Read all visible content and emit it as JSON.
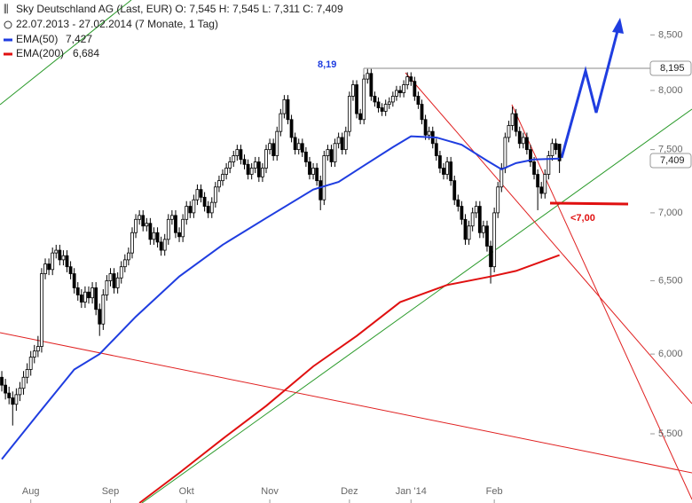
{
  "chart_data": {
    "type": "candlestick",
    "title": "Sky Deutschland AG (Last, EUR)  O: 7,545  H: 7,545  L: 7,311  C: 7,409",
    "subtitle": "22.07.2013 - 27.02.2014 (7 Monate, 1 Tag)",
    "log_scale": true,
    "ylim": [
      5.1,
      8.83
    ],
    "yticks": [
      {
        "value": 5.5,
        "label": "5,500"
      },
      {
        "value": 6,
        "label": "6,000"
      },
      {
        "value": 6.5,
        "label": "6,500"
      },
      {
        "value": 7,
        "label": "7,000"
      },
      {
        "value": 7.5,
        "label": "7,500"
      },
      {
        "value": 8,
        "label": "8,000"
      },
      {
        "value": 8.5,
        "label": "8,500"
      }
    ],
    "xlim": [
      -0.5,
      190.6
    ],
    "xticks": [
      {
        "value": 8,
        "label": "Aug"
      },
      {
        "value": 30,
        "label": "Sep"
      },
      {
        "value": 51,
        "label": "Okt"
      },
      {
        "value": 74,
        "label": "Nov"
      },
      {
        "value": 96,
        "label": "Dez"
      },
      {
        "value": 113,
        "label": "Jan '14"
      },
      {
        "value": 136,
        "label": "Feb"
      }
    ],
    "up_color": "#ffffff",
    "down_color": "#000000",
    "open": [
      5.85,
      5.8,
      5.75,
      5.72,
      5.68,
      5.74,
      5.78,
      5.85,
      5.9,
      5.98,
      6.02,
      6.05,
      6.55,
      6.62,
      6.58,
      6.7,
      6.72,
      6.65,
      6.68,
      6.6,
      6.55,
      6.45,
      6.4,
      6.35,
      6.42,
      6.38,
      6.45,
      6.3,
      6.2,
      6.4,
      6.5,
      6.55,
      6.45,
      6.52,
      6.6,
      6.65,
      6.7,
      6.85,
      6.95,
      6.98,
      6.9,
      6.92,
      6.8,
      6.85,
      6.78,
      6.72,
      6.8,
      6.95,
      6.98,
      6.85,
      6.82,
      6.95,
      7.05,
      7.0,
      7.1,
      7.18,
      7.12,
      7.05,
      7.0,
      7.08,
      7.2,
      7.25,
      7.3,
      7.35,
      7.4,
      7.45,
      7.5,
      7.42,
      7.38,
      7.3,
      7.35,
      7.4,
      7.28,
      7.35,
      7.5,
      7.55,
      7.45,
      7.65,
      7.8,
      7.92,
      7.75,
      7.6,
      7.5,
      7.55,
      7.48,
      7.4,
      7.3,
      7.35,
      7.25,
      7.1,
      7.45,
      7.5,
      7.4,
      7.55,
      7.6,
      7.5,
      7.65,
      7.95,
      8.05,
      7.8,
      7.75,
      8.1,
      8.15,
      7.95,
      7.9,
      7.85,
      7.82,
      7.88,
      7.9,
      7.95,
      8.0,
      7.98,
      8.05,
      8.12,
      8.08,
      7.95,
      7.88,
      7.75,
      7.62,
      7.65,
      7.55,
      7.45,
      7.35,
      7.3,
      7.4,
      7.25,
      7.1,
      7.05,
      6.95,
      6.8,
      6.9,
      7.0,
      7.05,
      6.85,
      6.9,
      6.75,
      6.6,
      7.0,
      7.2,
      7.35,
      7.6,
      7.7,
      7.8,
      7.65,
      7.55,
      7.6,
      7.5,
      7.4,
      7.3,
      7.2,
      7.15,
      7.3,
      7.45,
      7.55,
      7.545
    ],
    "high": [
      5.89,
      5.84,
      5.79,
      5.76,
      5.78,
      5.82,
      5.89,
      5.94,
      6.02,
      6.06,
      6.12,
      6.59,
      6.66,
      6.66,
      6.74,
      6.76,
      6.76,
      6.72,
      6.72,
      6.64,
      6.59,
      6.49,
      6.44,
      6.46,
      6.46,
      6.49,
      6.49,
      6.34,
      6.44,
      6.54,
      6.59,
      6.59,
      6.56,
      6.64,
      6.69,
      6.74,
      6.89,
      6.99,
      7.02,
      7.02,
      6.96,
      6.96,
      6.89,
      6.89,
      6.82,
      6.84,
      6.99,
      7.02,
      7.02,
      6.89,
      6.99,
      7.09,
      7.09,
      7.14,
      7.22,
      7.22,
      7.16,
      7.09,
      7.12,
      7.24,
      7.29,
      7.34,
      7.39,
      7.44,
      7.49,
      7.54,
      7.54,
      7.46,
      7.42,
      7.39,
      7.44,
      7.44,
      7.39,
      7.54,
      7.59,
      7.59,
      7.69,
      7.84,
      7.96,
      7.96,
      7.79,
      7.64,
      7.59,
      7.59,
      7.52,
      7.44,
      7.39,
      7.39,
      7.29,
      7.49,
      7.54,
      7.54,
      7.59,
      7.64,
      7.64,
      7.69,
      7.99,
      8.09,
      8.09,
      7.84,
      8.14,
      8.19,
      8.19,
      7.99,
      7.94,
      7.89,
      7.92,
      7.94,
      7.99,
      8.04,
      8.04,
      8.09,
      8.16,
      8.16,
      8.12,
      7.99,
      7.92,
      7.79,
      7.69,
      7.69,
      7.59,
      7.49,
      7.39,
      7.44,
      7.44,
      7.29,
      7.14,
      7.09,
      6.99,
      6.94,
      7.04,
      7.09,
      7.09,
      6.94,
      6.94,
      6.79,
      7.04,
      7.24,
      7.39,
      7.64,
      7.74,
      7.86,
      7.84,
      7.69,
      7.64,
      7.64,
      7.54,
      7.44,
      7.34,
      7.24,
      7.34,
      7.49,
      7.59,
      7.59,
      7.545
    ],
    "low": [
      5.76,
      5.71,
      5.68,
      5.55,
      5.64,
      5.7,
      5.74,
      5.81,
      5.86,
      5.94,
      5.98,
      6.01,
      6.51,
      6.54,
      6.54,
      6.66,
      6.61,
      6.61,
      6.56,
      6.51,
      6.41,
      6.36,
      6.31,
      6.31,
      6.34,
      6.34,
      6.26,
      6.12,
      6.16,
      6.36,
      6.46,
      6.41,
      6.41,
      6.48,
      6.56,
      6.61,
      6.66,
      6.81,
      6.91,
      6.86,
      6.86,
      6.76,
      6.76,
      6.74,
      6.68,
      6.68,
      6.76,
      6.91,
      6.81,
      6.78,
      6.78,
      6.91,
      6.96,
      6.96,
      7.06,
      7.08,
      7.01,
      6.96,
      6.96,
      7.04,
      7.16,
      7.21,
      7.26,
      7.31,
      7.36,
      7.41,
      7.38,
      7.34,
      7.26,
      7.26,
      7.31,
      7.24,
      7.24,
      7.31,
      7.46,
      7.41,
      7.41,
      7.61,
      7.76,
      7.71,
      7.56,
      7.46,
      7.46,
      7.44,
      7.36,
      7.26,
      7.26,
      7.21,
      7.02,
      7.06,
      7.41,
      7.36,
      7.36,
      7.51,
      7.46,
      7.46,
      7.61,
      7.91,
      7.76,
      7.71,
      7.71,
      8.06,
      7.91,
      7.86,
      7.81,
      7.78,
      7.78,
      7.84,
      7.86,
      7.91,
      7.94,
      7.94,
      8.01,
      8.04,
      7.91,
      7.84,
      7.71,
      7.58,
      7.58,
      7.51,
      7.41,
      7.31,
      7.26,
      7.26,
      7.21,
      7.06,
      7.01,
      6.91,
      6.76,
      6.76,
      6.86,
      6.96,
      6.81,
      6.81,
      6.71,
      6.48,
      6.56,
      6.96,
      7.16,
      7.31,
      7.56,
      7.66,
      7.61,
      7.51,
      7.51,
      7.46,
      7.36,
      7.26,
      7.02,
      7.11,
      7.11,
      7.26,
      7.41,
      7.46,
      7.311
    ],
    "close": [
      5.8,
      5.75,
      5.72,
      5.68,
      5.74,
      5.78,
      5.85,
      5.9,
      5.98,
      6.02,
      6.05,
      6.55,
      6.62,
      6.58,
      6.7,
      6.72,
      6.65,
      6.68,
      6.6,
      6.55,
      6.45,
      6.4,
      6.35,
      6.42,
      6.38,
      6.45,
      6.3,
      6.2,
      6.4,
      6.5,
      6.55,
      6.45,
      6.52,
      6.6,
      6.65,
      6.7,
      6.85,
      6.95,
      6.98,
      6.9,
      6.92,
      6.8,
      6.85,
      6.78,
      6.72,
      6.8,
      6.95,
      6.98,
      6.85,
      6.82,
      6.95,
      7.05,
      7.0,
      7.1,
      7.18,
      7.12,
      7.05,
      7.0,
      7.08,
      7.2,
      7.25,
      7.3,
      7.35,
      7.4,
      7.45,
      7.5,
      7.42,
      7.38,
      7.3,
      7.35,
      7.4,
      7.28,
      7.35,
      7.5,
      7.55,
      7.45,
      7.65,
      7.8,
      7.92,
      7.75,
      7.6,
      7.5,
      7.55,
      7.48,
      7.4,
      7.3,
      7.35,
      7.25,
      7.1,
      7.45,
      7.5,
      7.4,
      7.55,
      7.6,
      7.5,
      7.65,
      7.95,
      8.05,
      7.8,
      7.75,
      8.1,
      8.15,
      7.95,
      7.9,
      7.85,
      7.82,
      7.88,
      7.9,
      7.95,
      8.0,
      7.98,
      8.05,
      8.12,
      8.08,
      7.95,
      7.88,
      7.75,
      7.62,
      7.65,
      7.55,
      7.45,
      7.35,
      7.3,
      7.4,
      7.25,
      7.1,
      7.05,
      6.95,
      6.8,
      6.9,
      7.0,
      7.05,
      6.85,
      6.9,
      6.75,
      6.6,
      7.0,
      7.2,
      7.35,
      7.6,
      7.7,
      7.8,
      7.65,
      7.55,
      7.6,
      7.5,
      7.4,
      7.3,
      7.2,
      7.15,
      7.3,
      7.45,
      7.55,
      7.5,
      7.409
    ],
    "series": [
      {
        "name": "EMA(50)",
        "last_label": "7,427",
        "color": "#1f3de0",
        "x": [
          0,
          10,
          20,
          27,
          37,
          49,
          61,
          73,
          86,
          93,
          100,
          108,
          113,
          120,
          127,
          134,
          138,
          142,
          147,
          154
        ],
        "values": [
          5.35,
          5.62,
          5.9,
          6.0,
          6.25,
          6.53,
          6.76,
          6.96,
          7.18,
          7.24,
          7.37,
          7.52,
          7.61,
          7.6,
          7.54,
          7.41,
          7.34,
          7.39,
          7.42,
          7.427
        ]
      },
      {
        "name": "EMA(200)",
        "last_label": "6,684",
        "color": "#e01010",
        "x": [
          38,
          49,
          61,
          73,
          86,
          98,
          110,
          123,
          135,
          142,
          154
        ],
        "values": [
          5.1,
          5.27,
          5.47,
          5.67,
          5.92,
          6.12,
          6.35,
          6.47,
          6.53,
          6.57,
          6.684
        ]
      }
    ],
    "annotations": {
      "peak_label": "8,19",
      "support_label": "<7,00",
      "peak_badge": "8,195",
      "last_badge": "7,409"
    }
  }
}
